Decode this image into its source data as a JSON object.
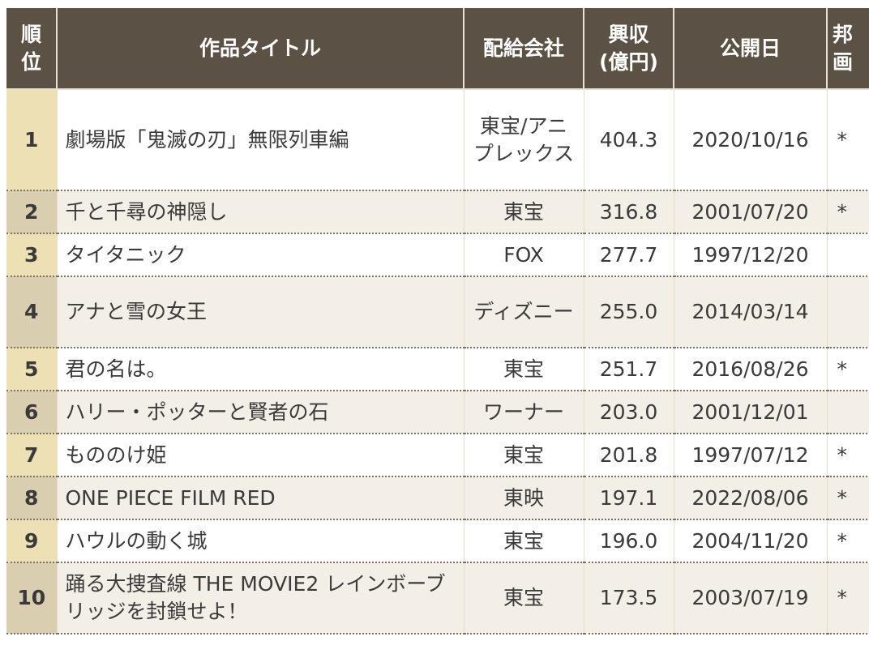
{
  "headers": {
    "rank": [
      "順",
      "位"
    ],
    "title": "作品タイトル",
    "distributor": "配給会社",
    "gross": [
      "興収",
      "(億円)"
    ],
    "date": "公開日",
    "japanese": [
      "邦",
      "画"
    ]
  },
  "rows": [
    {
      "rank": "1",
      "title": "劇場版「鬼滅の刃」無限列車編",
      "distributor": "東宝/アニプレックス",
      "gross": "404.3",
      "date": "2020/10/16",
      "japanese": "*"
    },
    {
      "rank": "2",
      "title": "千と千尋の神隠し",
      "distributor": "東宝",
      "gross": "316.8",
      "date": "2001/07/20",
      "japanese": "*"
    },
    {
      "rank": "3",
      "title": "タイタニック",
      "distributor": "FOX",
      "gross": "277.7",
      "date": "1997/12/20",
      "japanese": ""
    },
    {
      "rank": "4",
      "title": "アナと雪の女王",
      "distributor": "ディズニー",
      "gross": "255.0",
      "date": "2014/03/14",
      "japanese": ""
    },
    {
      "rank": "5",
      "title": "君の名は。",
      "distributor": "東宝",
      "gross": "251.7",
      "date": "2016/08/26",
      "japanese": "*"
    },
    {
      "rank": "6",
      "title": "ハリー・ポッターと賢者の石",
      "distributor": "ワーナー",
      "gross": "203.0",
      "date": "2001/12/01",
      "japanese": ""
    },
    {
      "rank": "7",
      "title": "もののけ姫",
      "distributor": "東宝",
      "gross": "201.8",
      "date": "1997/07/12",
      "japanese": "*"
    },
    {
      "rank": "8",
      "title": "ONE PIECE FILM RED",
      "distributor": "東映",
      "gross": "197.1",
      "date": "2022/08/06",
      "japanese": "*"
    },
    {
      "rank": "9",
      "title": "ハウルの動く城",
      "distributor": "東宝",
      "gross": "196.0",
      "date": "2004/11/20",
      "japanese": "*"
    },
    {
      "rank": "10",
      "title": "踊る大捜査線 THE MOVIE2 レインボーブリッジを封鎖せよ！",
      "distributor": "東宝",
      "gross": "173.5",
      "date": "2003/07/19",
      "japanese": "*"
    }
  ]
}
